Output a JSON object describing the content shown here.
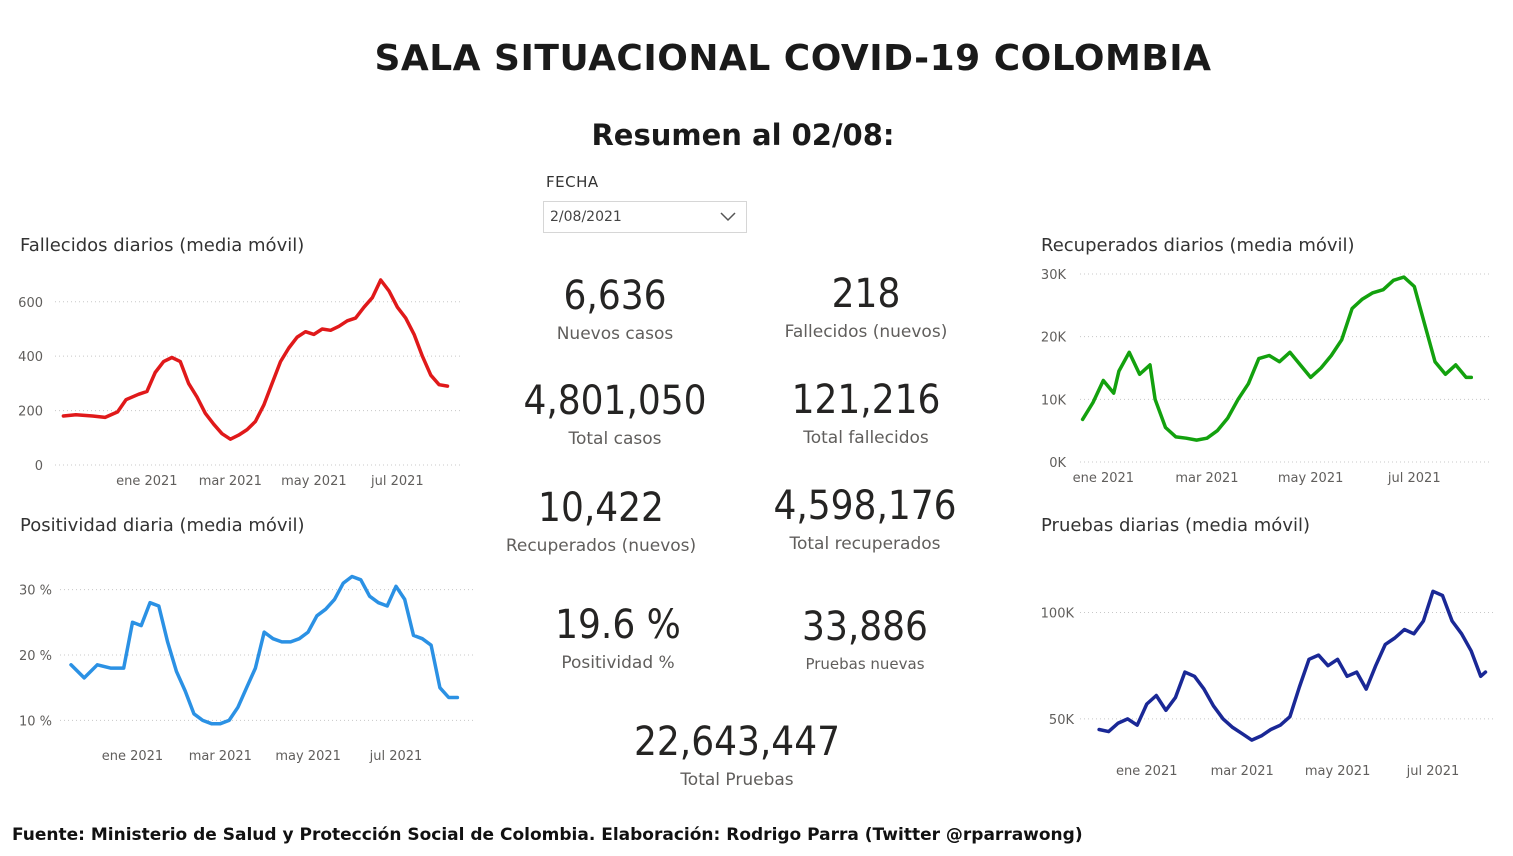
{
  "header": {
    "title": "SALA SITUACIONAL COVID-19 COLOMBIA",
    "subtitle": "Resumen al 02/08:"
  },
  "filter": {
    "label": "FECHA",
    "value": "2/08/2021"
  },
  "kpis": {
    "nuevos_casos": {
      "value": "6,636",
      "label": "Nuevos casos"
    },
    "fallecidos_nuevos": {
      "value": "218",
      "label": "Fallecidos (nuevos)"
    },
    "total_casos": {
      "value": "4,801,050",
      "label": "Total casos"
    },
    "total_fallecidos": {
      "value": "121,216",
      "label": "Total fallecidos"
    },
    "recuperados_nuevos": {
      "value": "10,422",
      "label": "Recuperados (nuevos)"
    },
    "total_recuperados": {
      "value": "4,598,176",
      "label": "Total recuperados"
    },
    "positividad": {
      "value": "19.6 %",
      "label": "Positividad %"
    },
    "pruebas_nuevas": {
      "value": "33,886",
      "label": "Pruebas nuevas"
    },
    "total_pruebas": {
      "value": "22,643,447",
      "label": "Total Pruebas"
    }
  },
  "footer": {
    "source": "Fuente: Ministerio de Salud y Protección Social de Colombia. Elaboración: Rodrigo Parra (Twitter @rparrawong)"
  },
  "chart_data": [
    {
      "id": "fallecidos",
      "type": "line",
      "title": "Fallecidos diarios (media móvil)",
      "color": "#e0191a",
      "grid": true,
      "x_ticks": [
        "ene 2021",
        "mar 2021",
        "may 2021",
        "jul 2021"
      ],
      "x_tick_pos": [
        3,
        5,
        7,
        9
      ],
      "xlim": [
        0.8,
        10.5
      ],
      "y_ticks": [
        0,
        200,
        400,
        600
      ],
      "y_tick_labels": [
        "0",
        "200",
        "400",
        "600"
      ],
      "ylim": [
        0,
        680
      ],
      "x": [
        1.0,
        1.3,
        1.7,
        2.0,
        2.3,
        2.5,
        2.8,
        3.0,
        3.2,
        3.4,
        3.6,
        3.8,
        4.0,
        4.2,
        4.4,
        4.6,
        4.8,
        5.0,
        5.2,
        5.4,
        5.6,
        5.8,
        6.0,
        6.2,
        6.4,
        6.6,
        6.8,
        7.0,
        7.2,
        7.4,
        7.6,
        7.8,
        8.0,
        8.2,
        8.4,
        8.6,
        8.8,
        9.0,
        9.2,
        9.4,
        9.6,
        9.8,
        10.0,
        10.2
      ],
      "series": [
        {
          "values": [
            180,
            185,
            180,
            175,
            195,
            240,
            260,
            270,
            340,
            380,
            395,
            380,
            300,
            250,
            190,
            150,
            115,
            95,
            110,
            130,
            160,
            220,
            300,
            380,
            430,
            470,
            490,
            480,
            500,
            495,
            510,
            530,
            540,
            580,
            615,
            680,
            640,
            580,
            540,
            480,
            400,
            330,
            295,
            290
          ]
        }
      ]
    },
    {
      "id": "recuperados",
      "type": "line",
      "title": "Recuperados diarios (media móvil)",
      "color": "#13a10e",
      "grid": true,
      "x_ticks": [
        "ene 2021",
        "mar 2021",
        "may 2021",
        "jul 2021"
      ],
      "x_tick_pos": [
        3,
        5,
        7,
        9
      ],
      "xlim": [
        2.55,
        10.5
      ],
      "y_ticks": [
        0,
        10000,
        20000,
        30000
      ],
      "y_tick_labels": [
        "0K",
        "10K",
        "20K",
        "30K"
      ],
      "ylim": [
        0,
        30000
      ],
      "x": [
        2.6,
        2.8,
        3.0,
        3.2,
        3.3,
        3.5,
        3.7,
        3.9,
        4.0,
        4.2,
        4.4,
        4.6,
        4.8,
        5.0,
        5.2,
        5.4,
        5.6,
        5.8,
        6.0,
        6.2,
        6.4,
        6.6,
        6.8,
        7.0,
        7.2,
        7.4,
        7.6,
        7.8,
        8.0,
        8.2,
        8.4,
        8.6,
        8.8,
        9.0,
        9.2,
        9.4,
        9.6,
        9.8,
        10.0,
        10.1
      ],
      "series": [
        {
          "values": [
            6800,
            9500,
            13000,
            11000,
            14500,
            17500,
            14000,
            15500,
            10000,
            5500,
            4000,
            3800,
            3500,
            3800,
            5000,
            7000,
            10000,
            12500,
            16500,
            17000,
            16000,
            17500,
            15500,
            13500,
            15000,
            17000,
            19500,
            24500,
            26000,
            27000,
            27500,
            29000,
            29500,
            28000,
            22000,
            16000,
            14000,
            15500,
            13500,
            13500
          ]
        }
      ]
    },
    {
      "id": "positividad",
      "type": "line",
      "title": "Positividad diaria (media móvil)",
      "color": "#2b91e4",
      "grid": true,
      "x_ticks": [
        "ene 2021",
        "mar 2021",
        "may 2021",
        "jul 2021"
      ],
      "x_tick_pos": [
        3,
        5,
        7,
        9
      ],
      "xlim": [
        1.35,
        10.8
      ],
      "y_ticks": [
        10,
        20,
        30
      ],
      "y_tick_labels": [
        "10 %",
        "20 %",
        "30 %"
      ],
      "ylim": [
        7,
        33
      ],
      "x": [
        1.6,
        1.9,
        2.2,
        2.5,
        2.8,
        3.0,
        3.2,
        3.4,
        3.6,
        3.8,
        4.0,
        4.2,
        4.4,
        4.6,
        4.8,
        5.0,
        5.2,
        5.4,
        5.6,
        5.8,
        6.0,
        6.2,
        6.4,
        6.6,
        6.8,
        7.0,
        7.2,
        7.4,
        7.6,
        7.8,
        8.0,
        8.2,
        8.4,
        8.6,
        8.8,
        9.0,
        9.2,
        9.4,
        9.6,
        9.8,
        10.0,
        10.2,
        10.4
      ],
      "series": [
        {
          "values": [
            18.5,
            16.5,
            18.5,
            18.0,
            18.0,
            25.0,
            24.5,
            28.0,
            27.5,
            22.0,
            17.5,
            14.5,
            11.0,
            10.0,
            9.5,
            9.5,
            10.0,
            12.0,
            15.0,
            18.0,
            23.5,
            22.5,
            22.0,
            22.0,
            22.5,
            23.5,
            26.0,
            27.0,
            28.5,
            31.0,
            32.0,
            31.5,
            29.0,
            28.0,
            27.5,
            30.5,
            28.5,
            23.0,
            22.5,
            21.5,
            15.0,
            13.5,
            13.5
          ]
        }
      ]
    },
    {
      "id": "pruebas",
      "type": "line",
      "title": "Pruebas diarias (media móvil)",
      "color": "#1a2896",
      "grid": true,
      "x_ticks": [
        "ene 2021",
        "mar 2021",
        "may 2021",
        "jul 2021"
      ],
      "x_tick_pos": [
        3,
        5,
        7,
        9
      ],
      "xlim": [
        1.6,
        10.3
      ],
      "y_ticks": [
        50000,
        100000
      ],
      "y_tick_labels": [
        "50K",
        "100K"
      ],
      "ylim": [
        33000,
        120000
      ],
      "x": [
        2.0,
        2.2,
        2.4,
        2.6,
        2.8,
        3.0,
        3.2,
        3.4,
        3.6,
        3.8,
        4.0,
        4.2,
        4.4,
        4.6,
        4.8,
        5.0,
        5.2,
        5.4,
        5.6,
        5.8,
        6.0,
        6.2,
        6.4,
        6.6,
        6.8,
        7.0,
        7.2,
        7.4,
        7.6,
        7.8,
        8.0,
        8.2,
        8.4,
        8.6,
        8.8,
        9.0,
        9.2,
        9.4,
        9.6,
        9.8,
        10.0,
        10.1
      ],
      "series": [
        {
          "values": [
            45000,
            44000,
            48000,
            50000,
            47000,
            57000,
            61000,
            54000,
            60000,
            72000,
            70000,
            64000,
            56000,
            50000,
            46000,
            43000,
            40000,
            42000,
            45000,
            47000,
            51000,
            65000,
            78000,
            80000,
            75000,
            78000,
            70000,
            72000,
            64000,
            75000,
            85000,
            88000,
            92000,
            90000,
            96000,
            110000,
            108000,
            96000,
            90000,
            82000,
            70000,
            72000
          ]
        }
      ]
    }
  ]
}
